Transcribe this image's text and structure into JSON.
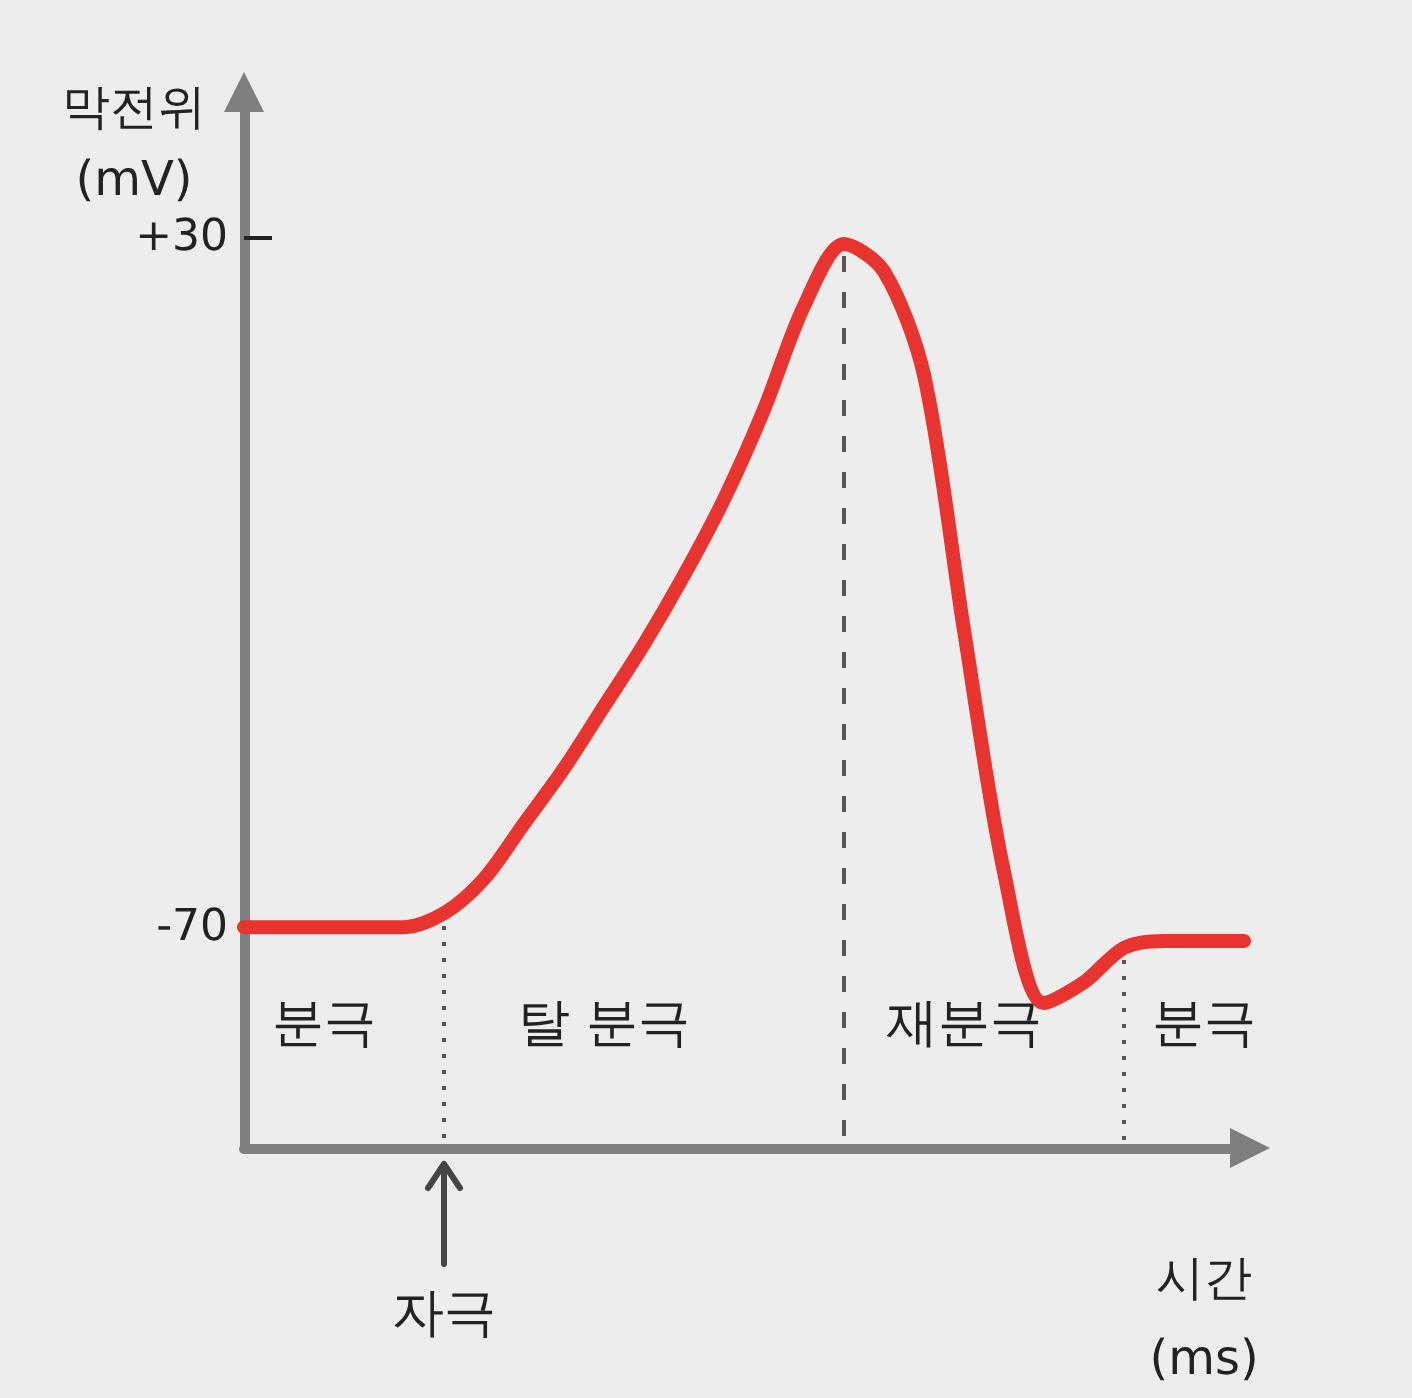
{
  "chart_data": {
    "type": "line",
    "xlabel": "시간\n(ms)",
    "ylabel": "막전위\n(mV)",
    "categories": [
      null,
      null,
      null,
      null,
      null,
      null,
      null,
      null,
      null,
      null,
      null,
      null,
      null,
      null,
      null,
      null,
      null,
      null,
      null,
      null,
      null,
      null,
      null,
      null,
      null,
      null
    ],
    "series": [
      {
        "color": "#e8332e",
        "values": [
          -70,
          -70,
          -70,
          -70,
          -70,
          -68,
          -63,
          -55,
          -47,
          -38,
          -29,
          -19,
          -8,
          5,
          20,
          29,
          25,
          10,
          -27,
          -62,
          -81,
          -78,
          -73,
          -72,
          -72,
          -72
        ]
      }
    ],
    "ylim": [
      -102,
      50
    ],
    "yticks": [
      {
        "value": -70,
        "label": "-70"
      },
      {
        "value": 30,
        "label": "+30"
      }
    ],
    "tick_labels": "y",
    "line_style": "solid",
    "annotations": [
      "분극",
      "탈 분극",
      "재분극",
      "분극",
      "자극"
    ]
  }
}
